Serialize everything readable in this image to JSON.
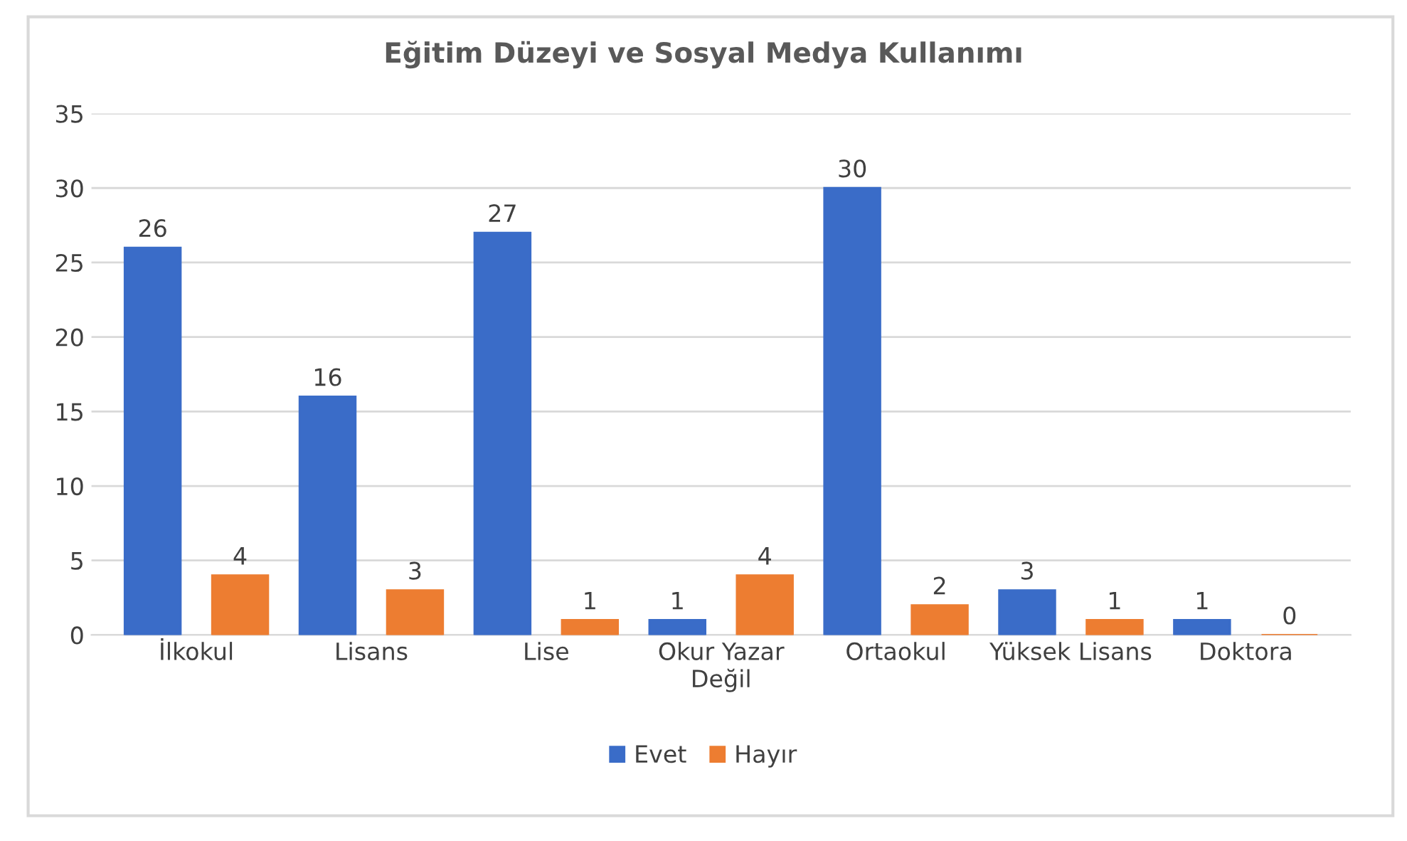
{
  "chart_data": {
    "type": "bar",
    "title": "Eğitim Düzeyi ve Sosyal Medya Kullanımı",
    "categories": [
      "İlkokul",
      "Lisans",
      "Lise",
      "Okur Yazar\nDeğil",
      "Ortaokul",
      "Yüksek Lisans",
      "Doktora"
    ],
    "series": [
      {
        "name": "Evet",
        "color": "#3a6cc8",
        "values": [
          26,
          16,
          27,
          1,
          30,
          3,
          1
        ]
      },
      {
        "name": "Hayır",
        "color": "#ed7d31",
        "values": [
          4,
          3,
          1,
          4,
          2,
          1,
          0
        ]
      }
    ],
    "ylim": [
      0,
      35
    ],
    "yticks": [
      0,
      5,
      10,
      15,
      20,
      25,
      30,
      35
    ],
    "grid": "y",
    "legend": "bottom",
    "data_labels": true
  }
}
